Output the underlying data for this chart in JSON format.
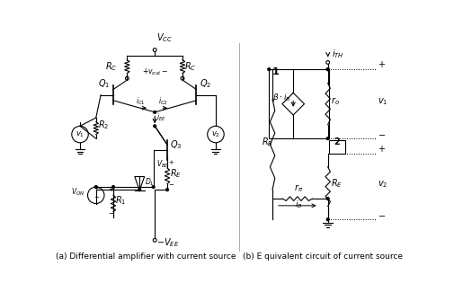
{
  "fig_width": 5.05,
  "fig_height": 3.35,
  "dpi": 100,
  "bg_color": "#ffffff",
  "line_color": "#000000",
  "lw": 0.8,
  "caption_left": "(a) Differential amplifier with current source",
  "caption_right": "(b) E quivalent circuit of current source",
  "caption_fontsize": 6.5,
  "label_fontsize": 7.0,
  "small_fontsize": 6.0
}
